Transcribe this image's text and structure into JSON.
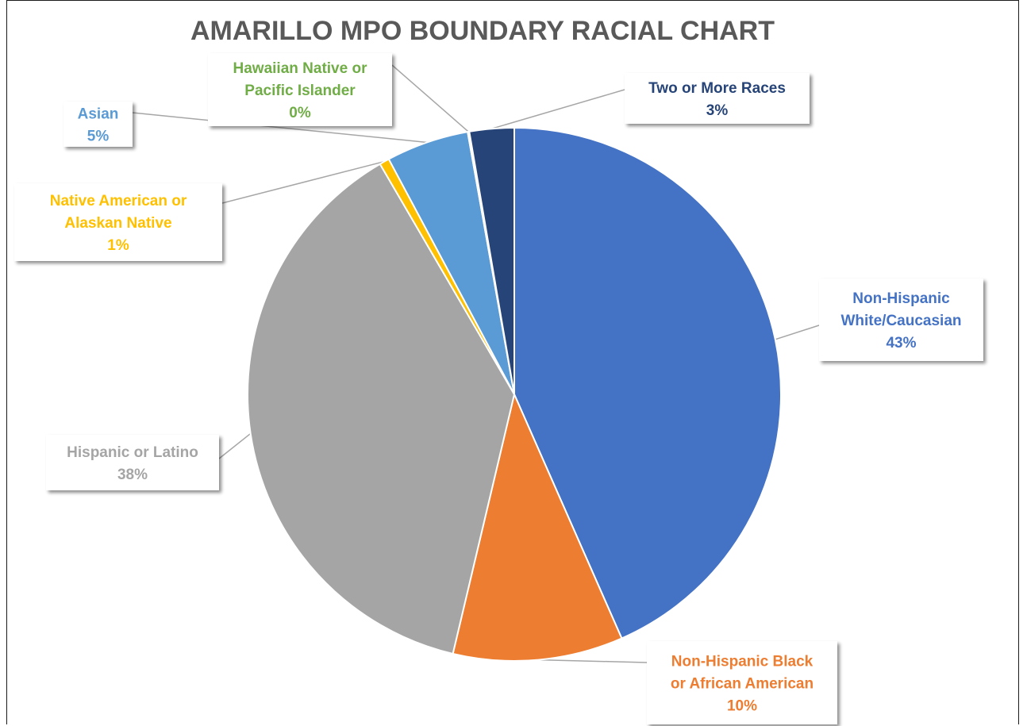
{
  "chart_data": {
    "type": "pie",
    "title": "AMARILLO MPO BOUNDARY RACIAL CHART",
    "slices": [
      {
        "label": [
          "Non-Hispanic",
          "White/Caucasian"
        ],
        "pct": "43%",
        "value": 43.4,
        "color": "#4472C4"
      },
      {
        "label": [
          "Non-Hispanic Black",
          "or African American"
        ],
        "pct": "10%",
        "value": 10.3,
        "color": "#ED7D31"
      },
      {
        "label": [
          "Hispanic or Latino"
        ],
        "pct": "38%",
        "value": 37.9,
        "color": "#A5A5A5"
      },
      {
        "label": [
          "Native American or",
          "Alaskan Native"
        ],
        "pct": "1%",
        "value": 0.6,
        "color": "#FFC000"
      },
      {
        "label": [
          "Asian"
        ],
        "pct": "5%",
        "value": 5.0,
        "color": "#5B9BD5"
      },
      {
        "label": [
          "Hawaiian Native or",
          "Pacific Islander"
        ],
        "pct": "0%",
        "value": 0.1,
        "color": "#70AD47"
      },
      {
        "label": [
          "Two or More Races"
        ],
        "pct": "3%",
        "value": 2.7,
        "color": "#264478"
      }
    ]
  }
}
